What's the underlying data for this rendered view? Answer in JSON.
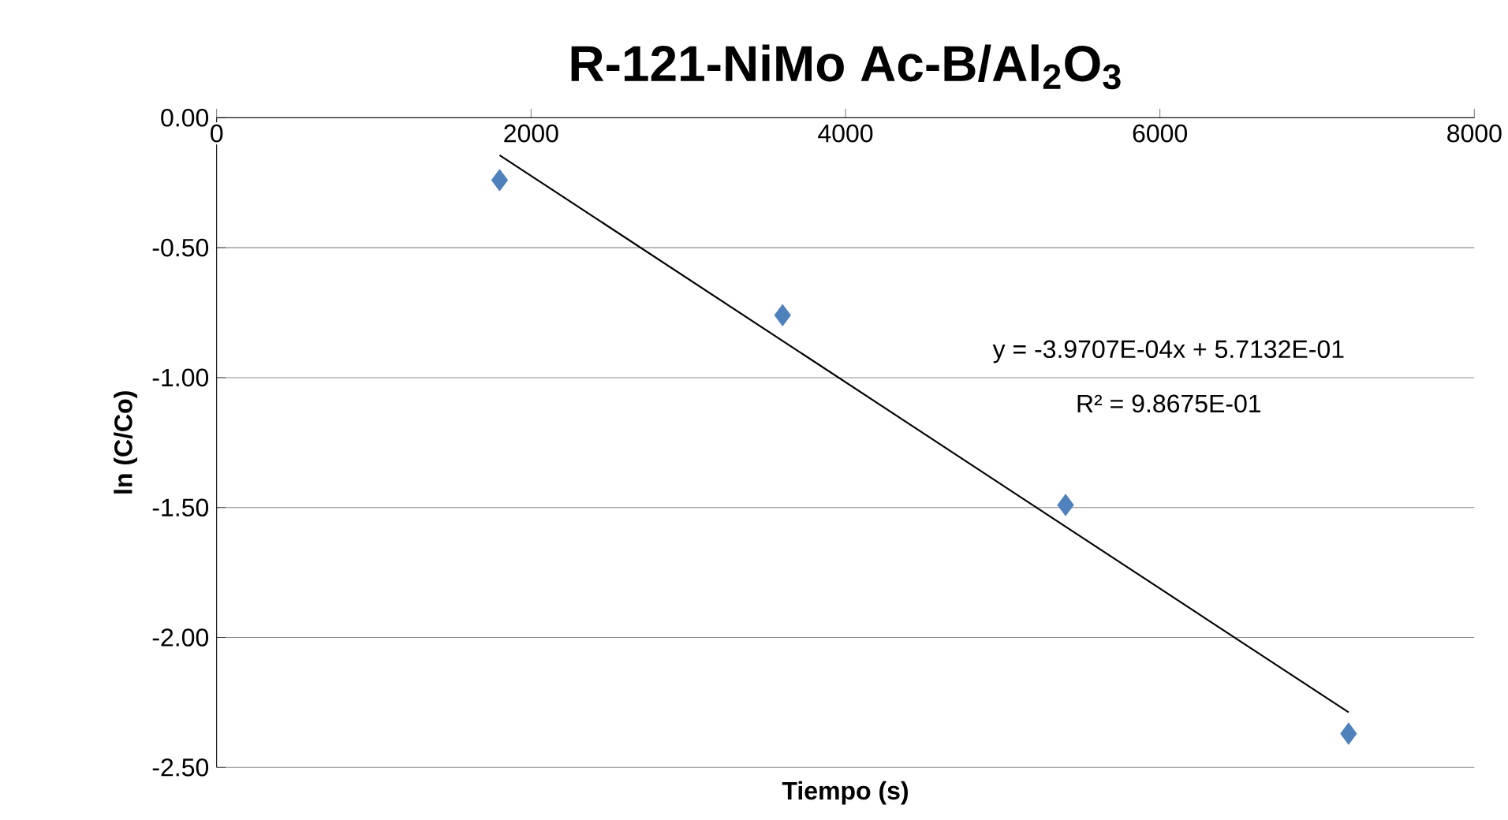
{
  "chart_data": {
    "type": "scatter",
    "title": "R-121-NiMo Ac-B/Al$_{2}$O$_{3}$",
    "xlabel": "Tiempo (s)",
    "ylabel": "ln (C/Co)",
    "series": [
      {
        "marker": "diamond",
        "color": "#4f81bd",
        "x": [
          1800,
          3600,
          5400,
          7200
        ],
        "values": [
          -0.24,
          -0.76,
          -1.49,
          -2.37
        ]
      },
      {
        "type": "line",
        "color": "#000000",
        "x": [
          1800,
          7200
        ],
        "values": [
          -0.144,
          -2.288
        ]
      }
    ],
    "xlim": [
      0,
      8000
    ],
    "xticks": [
      0,
      2000,
      4000,
      6000,
      8000
    ],
    "ylim": [
      -2.5,
      0
    ],
    "yticks": [
      {
        "value": 0,
        "label": "0.00"
      },
      {
        "value": -0.5,
        "label": "-0.50"
      },
      {
        "value": -1,
        "label": "-1.00"
      },
      {
        "value": -1.5,
        "label": "-1.50"
      },
      {
        "value": -2,
        "label": "-2.00"
      },
      {
        "value": -2.5,
        "label": "-2.50"
      }
    ],
    "grid": "y",
    "annotations": [
      "y = -3.9707E-04x + 5.7132E-01",
      "R² = 9.8675E-01"
    ]
  }
}
